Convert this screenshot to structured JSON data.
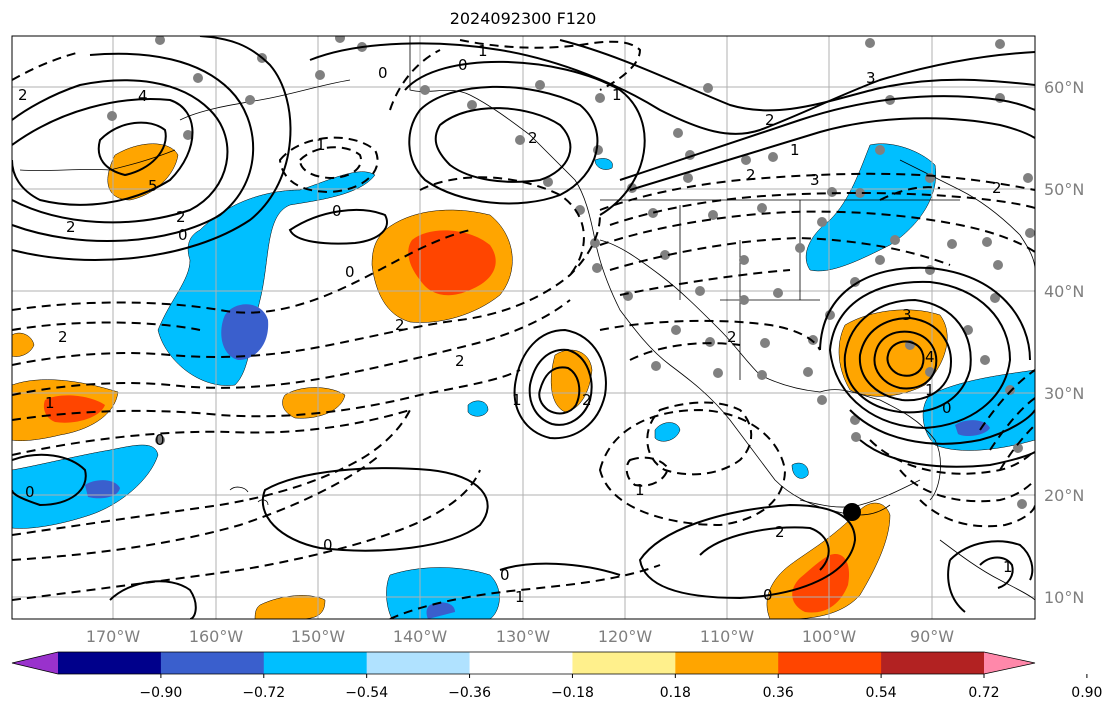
{
  "title": "2024092300 F120",
  "lat_labels": [
    "60°N",
    "50°N",
    "40°N",
    "30°N",
    "20°N",
    "10°N"
  ],
  "lon_labels": [
    "170°W",
    "160°W",
    "150°W",
    "140°W",
    "130°W",
    "120°W",
    "110°W",
    "100°W",
    "90°W"
  ],
  "colorbar": {
    "ticks": [
      "−0.90",
      "−0.72",
      "−0.54",
      "−0.36",
      "−0.18",
      "0.18",
      "0.36",
      "0.54",
      "0.72",
      "0.90"
    ],
    "colors": [
      "#9932cc",
      "#00008b",
      "#3a5fcd",
      "#00bfff",
      "#b0e2ff",
      "#ffffff",
      "#fff08c",
      "#ffa500",
      "#ff4500",
      "#b22222",
      "#ff88aa"
    ]
  },
  "contour_labels": [
    "1",
    "0",
    "3",
    "4",
    "2",
    "5",
    "0",
    "1",
    "2",
    "1",
    "2",
    "3",
    "2",
    "2",
    "2",
    "0",
    "0",
    "2",
    "1",
    "2",
    "2",
    "1",
    "2",
    "1",
    "3",
    "2",
    "4",
    "0",
    "1",
    "0",
    "0",
    "0",
    "2",
    "1",
    "0",
    "0",
    "1",
    "1",
    "0",
    "2"
  ],
  "marker": {
    "name": "storm-center",
    "lon": "98°W",
    "lat": "18°N"
  }
}
